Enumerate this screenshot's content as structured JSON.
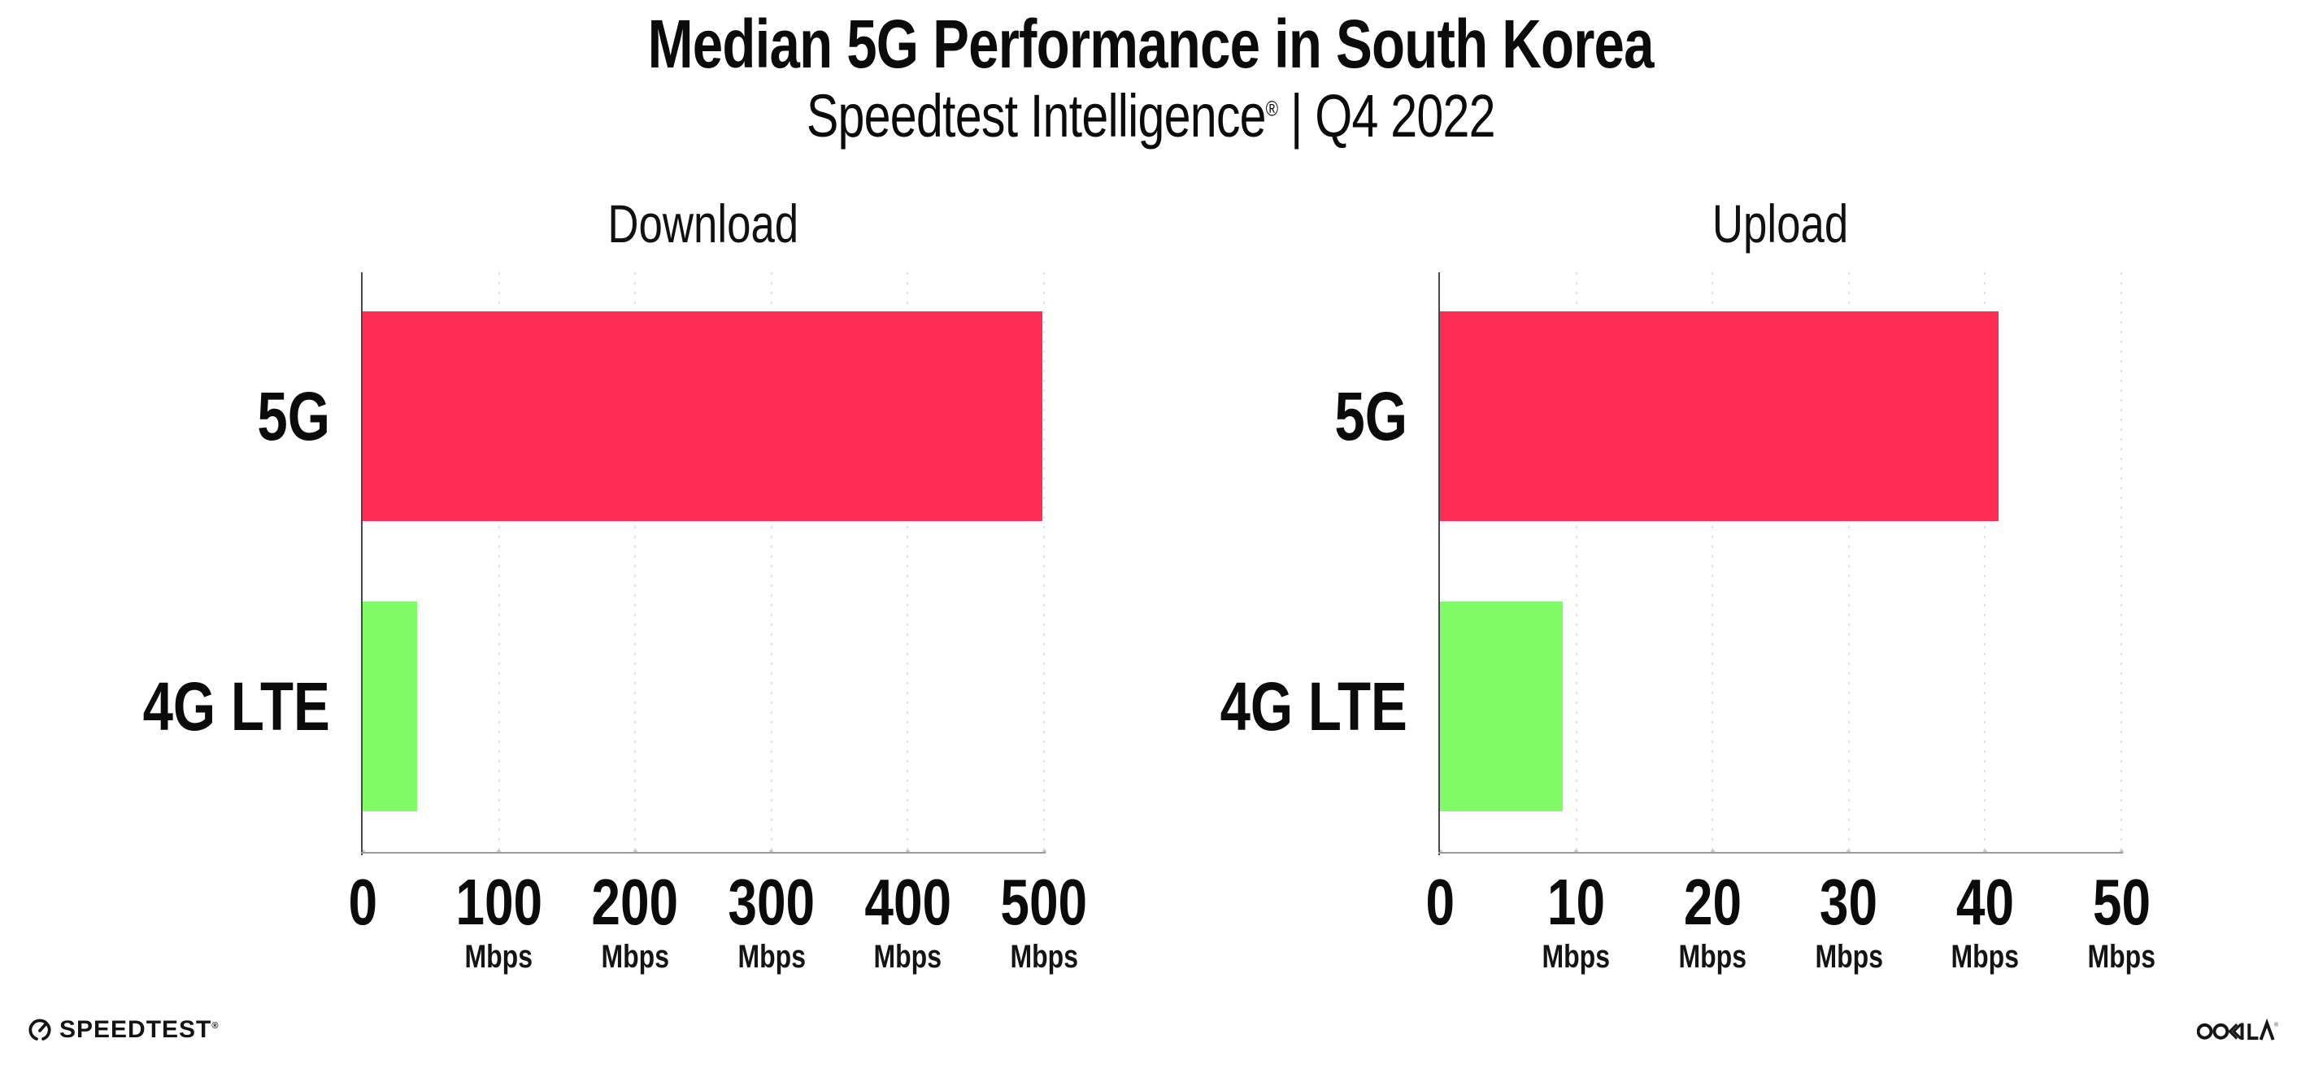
{
  "header": {
    "title": "Median 5G Performance in South Korea",
    "subtitle_brand": "Speedtest Intelligence",
    "subtitle_reg": "®",
    "subtitle_rest": " | Q4 2022"
  },
  "footer": {
    "speedtest_wordmark": "SPEEDTEST",
    "speedtest_reg": "®",
    "ookla_wordmark": "OOKLA",
    "speedtest_gauge_icon": "speedtest-gauge-icon",
    "ookla_logo_icon": "ookla-wordmark-icon"
  },
  "colors": {
    "bar_5g": "#FF2D55",
    "bar_4g_lte": "#80FB66",
    "y_axis": "#46464e",
    "x_axis": "#9a9aa0",
    "gridline": "#e0e0ea",
    "text": "#0b0b0c",
    "background": "#ffffff"
  },
  "chart_data": [
    {
      "type": "bar",
      "orientation": "horizontal",
      "title": "Download",
      "categories": [
        "5G",
        "4G LTE"
      ],
      "values": [
        499,
        40
      ],
      "unit": "Mbps",
      "xlim": [
        0,
        500
      ],
      "xticks": [
        0,
        100,
        200,
        300,
        400,
        500
      ],
      "tick_unit_label": "Mbps",
      "bar_colors": [
        "#FF2D55",
        "#80FB66"
      ],
      "grid": "dotted-vertical",
      "legend": "none"
    },
    {
      "type": "bar",
      "orientation": "horizontal",
      "title": "Upload",
      "categories": [
        "5G",
        "4G LTE"
      ],
      "values": [
        41,
        9
      ],
      "unit": "Mbps",
      "xlim": [
        0,
        50
      ],
      "xticks": [
        0,
        10,
        20,
        30,
        40,
        50
      ],
      "tick_unit_label": "Mbps",
      "bar_colors": [
        "#FF2D55",
        "#80FB66"
      ],
      "grid": "dotted-vertical",
      "legend": "none"
    }
  ]
}
